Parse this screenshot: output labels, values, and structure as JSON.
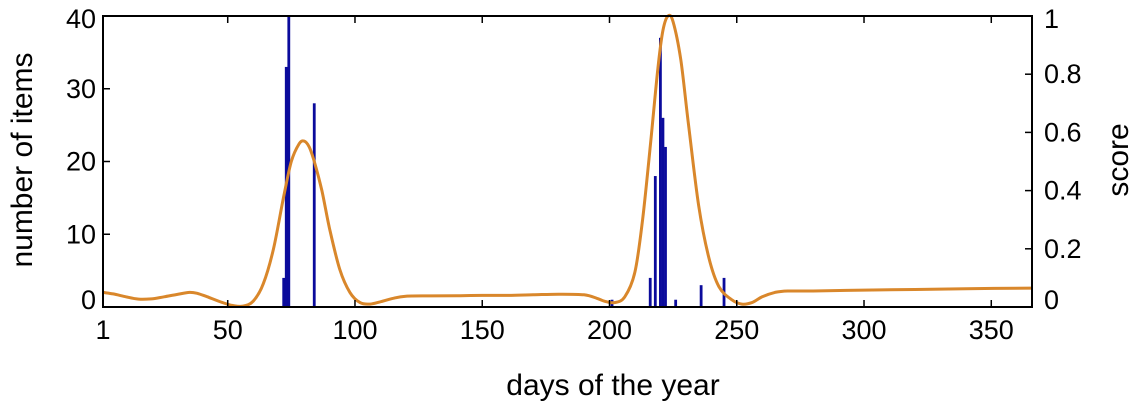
{
  "chart_data": {
    "type": "bar",
    "xlabel": "days of the year",
    "ylabel_left": "number of items",
    "ylabel_right": "score",
    "xlim": [
      1,
      366
    ],
    "ylim_left": [
      0,
      40
    ],
    "ylim_right": [
      0,
      1
    ],
    "grid": false,
    "x_ticks": [
      1,
      50,
      100,
      150,
      200,
      250,
      300,
      350
    ],
    "x_tick_labels": [
      "1",
      "50",
      "100",
      "150",
      "200",
      "250",
      "300",
      "350"
    ],
    "y_left_ticks": [
      0,
      10,
      20,
      30,
      40
    ],
    "y_left_tick_labels": [
      "0",
      "10",
      "20",
      "30",
      "40"
    ],
    "y_right_ticks": [
      0,
      0.2,
      0.4,
      0.6,
      0.8,
      1
    ],
    "y_right_tick_labels": [
      "0",
      "0.2",
      "0.4",
      "0.6",
      "0.8",
      "1"
    ],
    "colors": {
      "bars": "#0b0b9c",
      "score_line": "#d9872b"
    },
    "series": [
      {
        "kind": "bar",
        "axis": "left",
        "x": [
          72,
          73,
          74,
          84,
          201,
          216,
          218,
          220,
          221,
          222,
          226,
          236,
          245
        ],
        "values": [
          4,
          33,
          40,
          28,
          1,
          4,
          18,
          37,
          26,
          22,
          1,
          3,
          4
        ]
      },
      {
        "kind": "line",
        "axis": "right",
        "x": [
          1,
          5,
          10,
          15,
          20,
          25,
          30,
          35,
          38,
          42,
          48,
          52,
          56,
          60,
          64,
          68,
          72,
          75,
          78,
          80,
          82,
          84,
          87,
          90,
          94,
          98,
          102,
          106,
          110,
          115,
          120,
          130,
          140,
          150,
          160,
          170,
          180,
          190,
          195,
          198,
          202,
          206,
          210,
          213,
          216,
          219,
          221,
          223,
          225,
          228,
          231,
          235,
          239,
          243,
          248,
          252,
          256,
          260,
          265,
          270,
          280,
          300,
          320,
          340,
          366
        ],
        "values": [
          0.05,
          0.045,
          0.035,
          0.027,
          0.028,
          0.035,
          0.043,
          0.05,
          0.047,
          0.035,
          0.015,
          0.005,
          0.003,
          0.02,
          0.08,
          0.2,
          0.38,
          0.5,
          0.56,
          0.57,
          0.55,
          0.5,
          0.4,
          0.27,
          0.13,
          0.05,
          0.015,
          0.01,
          0.018,
          0.03,
          0.037,
          0.038,
          0.039,
          0.04,
          0.04,
          0.042,
          0.044,
          0.042,
          0.03,
          0.02,
          0.015,
          0.035,
          0.12,
          0.3,
          0.55,
          0.82,
          0.95,
          1.0,
          0.98,
          0.85,
          0.63,
          0.35,
          0.17,
          0.07,
          0.025,
          0.01,
          0.015,
          0.035,
          0.05,
          0.055,
          0.055,
          0.058,
          0.06,
          0.063,
          0.065
        ]
      }
    ]
  }
}
